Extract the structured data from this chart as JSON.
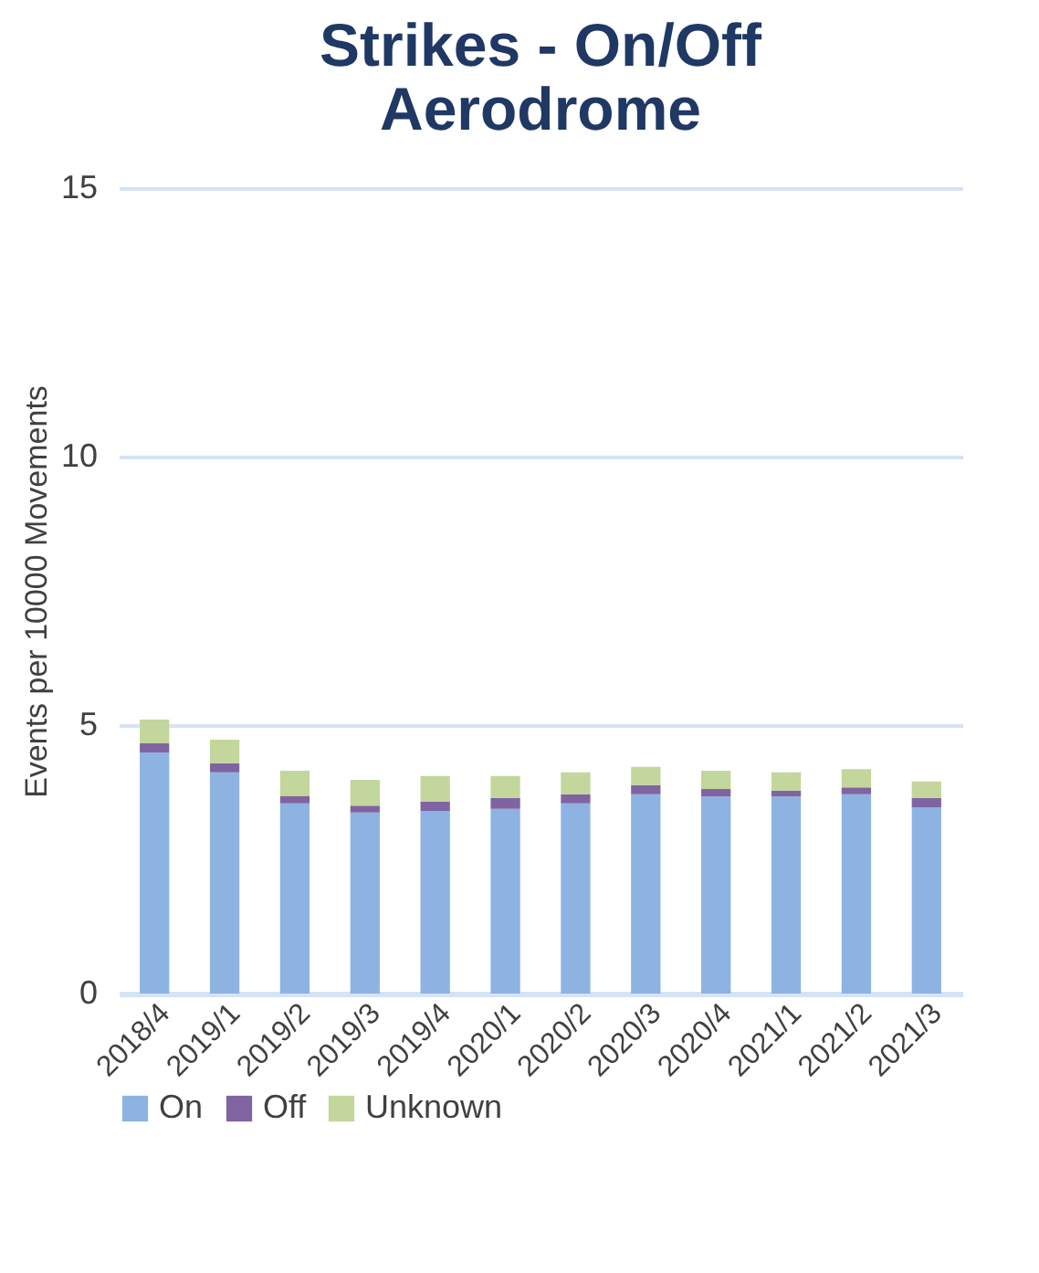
{
  "chart_data": {
    "type": "bar",
    "stacked": true,
    "title": "Strikes - On/Off\nAerodrome",
    "ylabel": "Events per 10000 Movements",
    "categories": [
      "2018/4",
      "2019/1",
      "2019/2",
      "2019/3",
      "2019/4",
      "2020/1",
      "2020/2",
      "2020/3",
      "2020/4",
      "2021/1",
      "2021/2",
      "2021/3"
    ],
    "series": [
      {
        "name": "On",
        "color": "#8db3e2",
        "values": [
          4.49,
          4.12,
          3.54,
          3.37,
          3.4,
          3.44,
          3.54,
          3.71,
          3.67,
          3.67,
          3.71,
          3.47
        ]
      },
      {
        "name": "Off",
        "color": "#8064a2",
        "values": [
          0.17,
          0.17,
          0.14,
          0.13,
          0.17,
          0.2,
          0.17,
          0.17,
          0.14,
          0.11,
          0.13,
          0.17
        ]
      },
      {
        "name": "Unknown",
        "color": "#c3d69b",
        "values": [
          0.44,
          0.44,
          0.47,
          0.48,
          0.48,
          0.41,
          0.41,
          0.34,
          0.34,
          0.34,
          0.34,
          0.31
        ]
      }
    ],
    "ylim": [
      0,
      15
    ],
    "yticks": [
      0,
      5,
      10,
      15
    ],
    "grid": "y",
    "legend": "bottom"
  }
}
